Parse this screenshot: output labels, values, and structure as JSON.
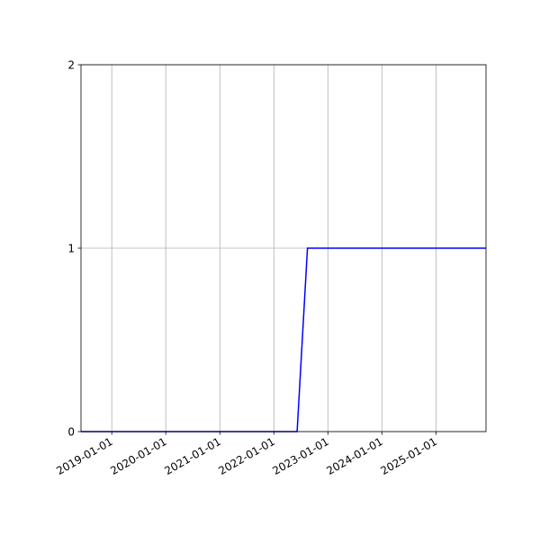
{
  "chart_data": {
    "type": "line",
    "title": "",
    "xlabel": "",
    "ylabel": "",
    "xlim": [
      "2018-06-07",
      "2025-12-05"
    ],
    "ylim": [
      0,
      2
    ],
    "grid": true,
    "x_tick_labels": [
      "2019-01-01",
      "2020-01-01",
      "2021-01-01",
      "2022-01-01",
      "2023-01-01",
      "2024-01-01",
      "2025-01-01"
    ],
    "y_tick_labels": [
      "0",
      "1",
      "2"
    ],
    "y_ticks": [
      0,
      1,
      2
    ],
    "series": [
      {
        "color": "#0000ff",
        "x": [
          "2018-06-07",
          "2022-06-07",
          "2022-08-16",
          "2025-12-05"
        ],
        "y": [
          0,
          0,
          1,
          1
        ]
      }
    ]
  }
}
